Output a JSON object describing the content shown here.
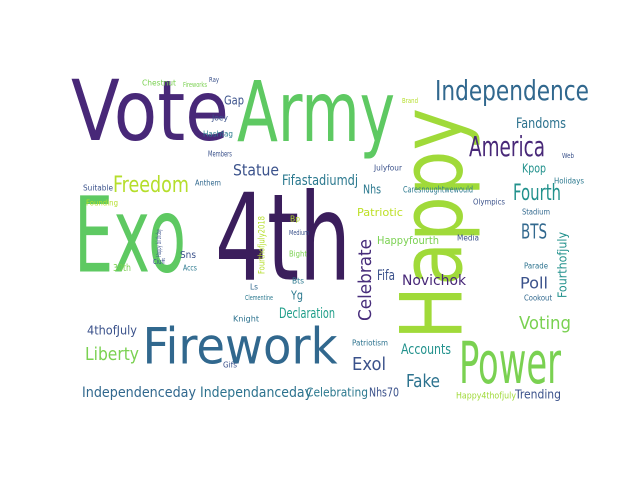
{
  "words": [
    {
      "text": "Vote",
      "color": "#482878"
    },
    {
      "text": "Army",
      "color": "#5ec962"
    },
    {
      "text": "Exo",
      "color": "#5ec962"
    },
    {
      "text": "4th",
      "color": "#3b1e5c"
    },
    {
      "text": "Happy",
      "color": "#a0da39"
    },
    {
      "text": "Firework",
      "color": "#31688e"
    },
    {
      "text": "Independence",
      "color": "#31688e"
    },
    {
      "text": "Power",
      "color": "#7ad151"
    },
    {
      "text": "America",
      "color": "#482878"
    },
    {
      "text": "Freedom",
      "color": "#b5de2b"
    },
    {
      "text": "Fandoms",
      "color": "#2c728e"
    },
    {
      "text": "Statue",
      "color": "#3b528b"
    },
    {
      "text": "Fifastadiumdj",
      "color": "#2a788e"
    },
    {
      "text": "Fourth",
      "color": "#21918c"
    },
    {
      "text": "BTS",
      "color": "#31688e"
    },
    {
      "text": "Celebrate",
      "color": "#472d7b"
    },
    {
      "text": "Voting",
      "color": "#7ad151"
    },
    {
      "text": "Liberty",
      "color": "#7ad151"
    },
    {
      "text": "Exol",
      "color": "#3b528b"
    },
    {
      "text": "Fake",
      "color": "#2c728e"
    },
    {
      "text": "Poll",
      "color": "#3b528b"
    },
    {
      "text": "Novichok",
      "color": "#482878"
    },
    {
      "text": "Independenceday",
      "color": "#31688e"
    },
    {
      "text": "Independanceday",
      "color": "#2c728e"
    },
    {
      "text": "Celebrating",
      "color": "#2a788e"
    },
    {
      "text": "Nhs70",
      "color": "#3b528b"
    },
    {
      "text": "Trending",
      "color": "#3b528b"
    },
    {
      "text": "Accounts",
      "color": "#21918c"
    },
    {
      "text": "Declaration",
      "color": "#1f9e89"
    },
    {
      "text": "Happyfourth",
      "color": "#7ad151"
    },
    {
      "text": "4thofJuly",
      "color": "#3b528b"
    },
    {
      "text": "Fourthofjuly",
      "color": "#21918c"
    },
    {
      "text": "Fifa",
      "color": "#3b528b"
    },
    {
      "text": "Patriotic",
      "color": "#bddf26"
    },
    {
      "text": "Nhs",
      "color": "#2a788e"
    },
    {
      "text": "Gap",
      "color": "#3b528b"
    },
    {
      "text": "Kpop",
      "color": "#21918c"
    },
    {
      "text": "Happy4thofjuly",
      "color": "#a0da39"
    },
    {
      "text": "Fourthofjuly2018",
      "color": "#b5de2b"
    },
    {
      "text": "Caresnoughtwewould",
      "color": "#2a788e"
    },
    {
      "text": "Anthem",
      "color": "#31688e"
    },
    {
      "text": "Suitable",
      "color": "#3b528b"
    },
    {
      "text": "Founding",
      "color": "#b5de2b"
    },
    {
      "text": "Chestnut",
      "color": "#7ad151"
    },
    {
      "text": "Yg",
      "color": "#2a788e"
    },
    {
      "text": "30th",
      "color": "#7ad151"
    },
    {
      "text": "Sns",
      "color": "#3b528b"
    },
    {
      "text": "Patriotism",
      "color": "#2c728e"
    },
    {
      "text": "Olympics",
      "color": "#3b528b"
    },
    {
      "text": "Stadium",
      "color": "#31688e"
    },
    {
      "text": "Holidays",
      "color": "#2a788e"
    },
    {
      "text": "Parade",
      "color": "#2c728e"
    },
    {
      "text": "Cookout",
      "color": "#31688e"
    },
    {
      "text": "Media",
      "color": "#3b528b"
    },
    {
      "text": "Knight",
      "color": "#2c728e"
    },
    {
      "text": "Gifs",
      "color": "#3b528b"
    },
    {
      "text": "Joey",
      "color": "#3b528b"
    },
    {
      "text": "Hashtag",
      "color": "#2a788e"
    },
    {
      "text": "Members",
      "color": "#3b528b"
    },
    {
      "text": "Julyfour",
      "color": "#3b528b"
    },
    {
      "text": "Bp",
      "color": "#b5de2b"
    },
    {
      "text": "Bight",
      "color": "#7ad151"
    },
    {
      "text": "Ls",
      "color": "#31688e"
    },
    {
      "text": "Clementine",
      "color": "#2a788e"
    },
    {
      "text": "Fireworks",
      "color": "#7ad151"
    },
    {
      "text": "Ray",
      "color": "#3b528b"
    },
    {
      "text": "Brand",
      "color": "#b5de2b"
    },
    {
      "text": "Web",
      "color": "#3b528b"
    },
    {
      "text": "Happy birthday",
      "color": "#3b528b"
    },
    {
      "text": "Accs",
      "color": "#2a788e"
    },
    {
      "text": "Ciuff",
      "color": "#3b528b"
    },
    {
      "text": "Medium",
      "color": "#3b528b"
    },
    {
      "text": "Bts",
      "color": "#2a788e"
    }
  ]
}
